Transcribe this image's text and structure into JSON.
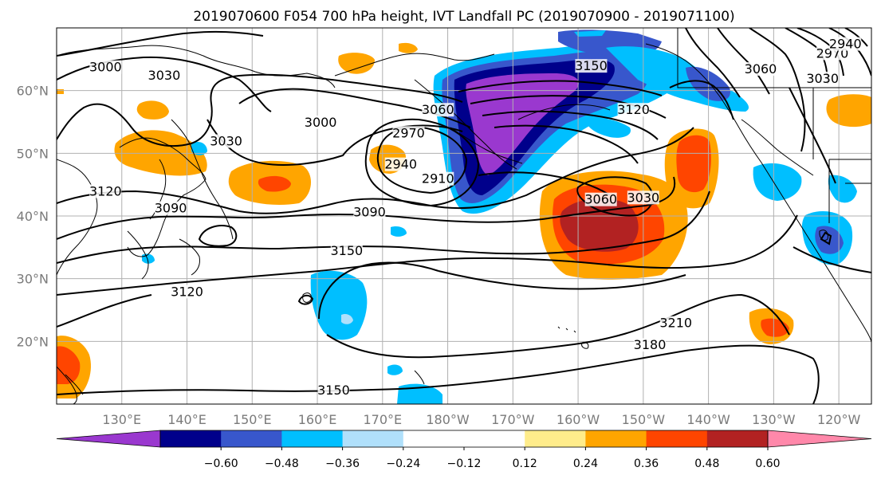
{
  "title": "2019070600 F054 700 hPa height, IVT Landfall PC (2019070900 - 2019071100)",
  "map": {
    "lon_min": 120.0,
    "lon_max": 245.0,
    "lat_min": 10.0,
    "lat_max": 70.0,
    "lat_ticks": [
      {
        "value": 20,
        "label": "20°N"
      },
      {
        "value": 30,
        "label": "30°N"
      },
      {
        "value": 40,
        "label": "40°N"
      },
      {
        "value": 50,
        "label": "50°N"
      },
      {
        "value": 60,
        "label": "60°N"
      }
    ],
    "lon_ticks": [
      {
        "value": 130,
        "label": "130°E"
      },
      {
        "value": 140,
        "label": "140°E"
      },
      {
        "value": 150,
        "label": "150°E"
      },
      {
        "value": 160,
        "label": "160°E"
      },
      {
        "value": 170,
        "label": "170°E"
      },
      {
        "value": 180,
        "label": "180°W"
      },
      {
        "value": 190,
        "label": "170°W"
      },
      {
        "value": 200,
        "label": "160°W"
      },
      {
        "value": 210,
        "label": "150°W"
      },
      {
        "value": 220,
        "label": "140°W"
      },
      {
        "value": 230,
        "label": "130°W"
      },
      {
        "value": 240,
        "label": "120°W"
      }
    ],
    "gridlines": true
  },
  "colorbar": {
    "colors": [
      "#9a38cf",
      "#00008b",
      "#3857cc",
      "#00bfff",
      "#b0e0fb",
      "#ffffff",
      "#ffffff",
      "#ffec8b",
      "#ffa500",
      "#ff4500",
      "#b22222",
      "#ff88aa"
    ],
    "labels": [
      "−0.60",
      "−0.48",
      "−0.36",
      "−0.24",
      "−0.12",
      "0.12",
      "0.24",
      "0.36",
      "0.48",
      "0.60"
    ]
  },
  "contour_labels": [
    {
      "text": "3000",
      "lon": 127.5,
      "lat": 63.3
    },
    {
      "text": "3030",
      "lon": 136.5,
      "lat": 62.0
    },
    {
      "text": "3030",
      "lon": 146.0,
      "lat": 51.5
    },
    {
      "text": "3000",
      "lon": 160.5,
      "lat": 54.5
    },
    {
      "text": "3060",
      "lon": 178.5,
      "lat": 56.5
    },
    {
      "text": "2970",
      "lon": 174.0,
      "lat": 52.8
    },
    {
      "text": "2940",
      "lon": 172.8,
      "lat": 47.8
    },
    {
      "text": "2910",
      "lon": 178.5,
      "lat": 45.5
    },
    {
      "text": "3120",
      "lon": 127.5,
      "lat": 43.5
    },
    {
      "text": "3090",
      "lon": 137.5,
      "lat": 40.8
    },
    {
      "text": "3090",
      "lon": 168.0,
      "lat": 40.2
    },
    {
      "text": "3150",
      "lon": 164.5,
      "lat": 34.0
    },
    {
      "text": "3120",
      "lon": 140.0,
      "lat": 27.5
    },
    {
      "text": "3060",
      "lon": 203.5,
      "lat": 42.2
    },
    {
      "text": "3030",
      "lon": 210.0,
      "lat": 42.5
    },
    {
      "text": "3150",
      "lon": 202.0,
      "lat": 63.5
    },
    {
      "text": "3120",
      "lon": 208.5,
      "lat": 56.5
    },
    {
      "text": "3060",
      "lon": 228.0,
      "lat": 63.0
    },
    {
      "text": "3030",
      "lon": 237.5,
      "lat": 61.5
    },
    {
      "text": "2970",
      "lon": 239.0,
      "lat": 65.5
    },
    {
      "text": "2940",
      "lon": 241.0,
      "lat": 67.0
    },
    {
      "text": "3210",
      "lon": 215.0,
      "lat": 22.5
    },
    {
      "text": "3180",
      "lon": 211.0,
      "lat": 19.0
    },
    {
      "text": "3150",
      "lon": 162.5,
      "lat": 11.8
    }
  ]
}
